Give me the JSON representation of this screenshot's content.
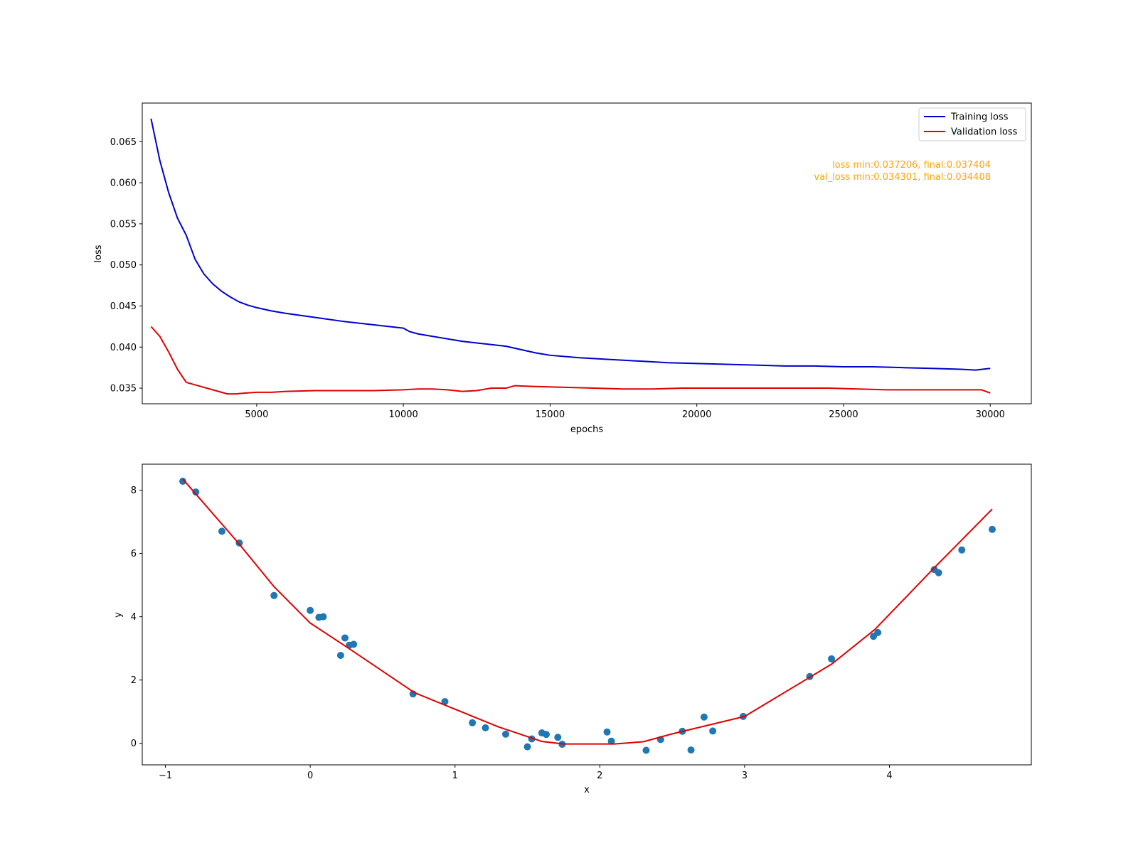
{
  "chart_data": [
    {
      "type": "line",
      "title": "",
      "xlabel": "epochs",
      "ylabel": "loss",
      "xlim": [
        1100,
        31400
      ],
      "ylim": [
        0.0331,
        0.0697
      ],
      "xticks": [
        5000,
        10000,
        15000,
        20000,
        25000,
        30000
      ],
      "yticks": [
        0.035,
        0.04,
        0.045,
        0.05,
        0.055,
        0.06,
        0.065
      ],
      "ytick_format": "0.000",
      "grid": false,
      "legend": "top-right",
      "annotation": {
        "lines": [
          "loss min:0.037206, final:0.037404",
          "val_loss min:0.034301, final:0.034408"
        ],
        "color": "#ffa500",
        "position": "top-right"
      },
      "series": [
        {
          "name": "Training loss",
          "color": "#0000cd",
          "x": [
            1400,
            1700,
            2000,
            2300,
            2600,
            2900,
            3200,
            3500,
            3800,
            4100,
            4400,
            4700,
            5000,
            5500,
            6000,
            7000,
            8000,
            9000,
            10000,
            10200,
            10500,
            11000,
            11500,
            12000,
            12500,
            13000,
            13500,
            14000,
            14500,
            15000,
            16000,
            17000,
            18000,
            18500,
            19000,
            20000,
            21000,
            22000,
            23000,
            24000,
            25000,
            25500,
            26000,
            27000,
            28000,
            29000,
            29500,
            30000
          ],
          "y": [
            0.0678,
            0.0627,
            0.0588,
            0.0557,
            0.0536,
            0.0507,
            0.0489,
            0.0477,
            0.0468,
            0.0461,
            0.0455,
            0.0451,
            0.0448,
            0.0444,
            0.0441,
            0.0436,
            0.0431,
            0.0427,
            0.0423,
            0.0419,
            0.0416,
            0.0413,
            0.041,
            0.0407,
            0.0405,
            0.0403,
            0.0401,
            0.0397,
            0.0393,
            0.039,
            0.0387,
            0.0385,
            0.0383,
            0.0382,
            0.0381,
            0.038,
            0.0379,
            0.0378,
            0.0377,
            0.0377,
            0.0376,
            0.0376,
            0.0376,
            0.0375,
            0.0374,
            0.0373,
            0.0372,
            0.0374
          ]
        },
        {
          "name": "Validation loss",
          "color": "#e00000",
          "x": [
            1400,
            1700,
            2000,
            2300,
            2600,
            3000,
            3500,
            4000,
            4300,
            4600,
            5000,
            5500,
            6000,
            7000,
            8000,
            9000,
            10000,
            10500,
            11000,
            11500,
            12000,
            12500,
            13000,
            13500,
            13800,
            14500,
            15500,
            16500,
            17500,
            18500,
            19500,
            20500,
            21500,
            22500,
            23500,
            24500,
            25500,
            26500,
            27500,
            28500,
            29000,
            29700,
            30000
          ],
          "y": [
            0.0425,
            0.0413,
            0.0394,
            0.0373,
            0.0357,
            0.0353,
            0.0348,
            0.0343,
            0.0343,
            0.0344,
            0.0345,
            0.0345,
            0.0346,
            0.0347,
            0.0347,
            0.0347,
            0.0348,
            0.0349,
            0.0349,
            0.0348,
            0.0346,
            0.0347,
            0.035,
            0.035,
            0.0353,
            0.0352,
            0.0351,
            0.035,
            0.0349,
            0.0349,
            0.035,
            0.035,
            0.035,
            0.035,
            0.035,
            0.035,
            0.0349,
            0.0348,
            0.0348,
            0.0348,
            0.0348,
            0.0348,
            0.0344
          ]
        }
      ]
    },
    {
      "type": "scatter",
      "title": "",
      "xlabel": "x",
      "ylabel": "y",
      "xlim": [
        -1.16,
        4.98
      ],
      "ylim": [
        -0.68,
        8.82
      ],
      "xticks": [
        -1,
        0,
        1,
        2,
        3,
        4
      ],
      "yticks": [
        0,
        2,
        4,
        6,
        8
      ],
      "grid": false,
      "points": {
        "color": "#1f77b4",
        "x": [
          -0.88,
          -0.79,
          -0.61,
          -0.49,
          -0.25,
          0.0,
          0.06,
          0.09,
          0.21,
          0.24,
          0.27,
          0.3,
          0.71,
          0.93,
          1.12,
          1.21,
          1.35,
          1.5,
          1.53,
          1.6,
          1.63,
          1.71,
          1.74,
          2.05,
          2.08,
          2.32,
          2.42,
          2.57,
          2.63,
          2.72,
          2.78,
          2.99,
          3.45,
          3.6,
          3.89,
          3.92,
          4.31,
          4.34,
          4.5,
          4.71
        ],
        "y": [
          8.28,
          7.94,
          6.7,
          6.33,
          4.67,
          4.2,
          3.98,
          4.0,
          2.78,
          3.33,
          3.1,
          3.13,
          1.56,
          1.32,
          0.65,
          0.49,
          0.29,
          -0.11,
          0.14,
          0.33,
          0.28,
          0.19,
          -0.03,
          0.36,
          0.07,
          -0.22,
          0.12,
          0.38,
          -0.21,
          0.83,
          0.39,
          0.85,
          2.11,
          2.67,
          3.38,
          3.5,
          5.49,
          5.39,
          6.11,
          6.76
        ]
      },
      "fit_line": {
        "color": "#e00000",
        "x": [
          -0.88,
          -0.5,
          -0.25,
          0.0,
          0.25,
          0.72,
          1.3,
          1.6,
          1.75,
          2.1,
          2.3,
          2.5,
          3.0,
          3.6,
          3.9,
          4.3,
          4.71
        ],
        "y": [
          8.35,
          6.35,
          4.95,
          3.8,
          3.05,
          1.6,
          0.52,
          0.06,
          -0.02,
          -0.02,
          0.05,
          0.3,
          0.85,
          2.5,
          3.6,
          5.5,
          7.4
        ]
      }
    }
  ]
}
